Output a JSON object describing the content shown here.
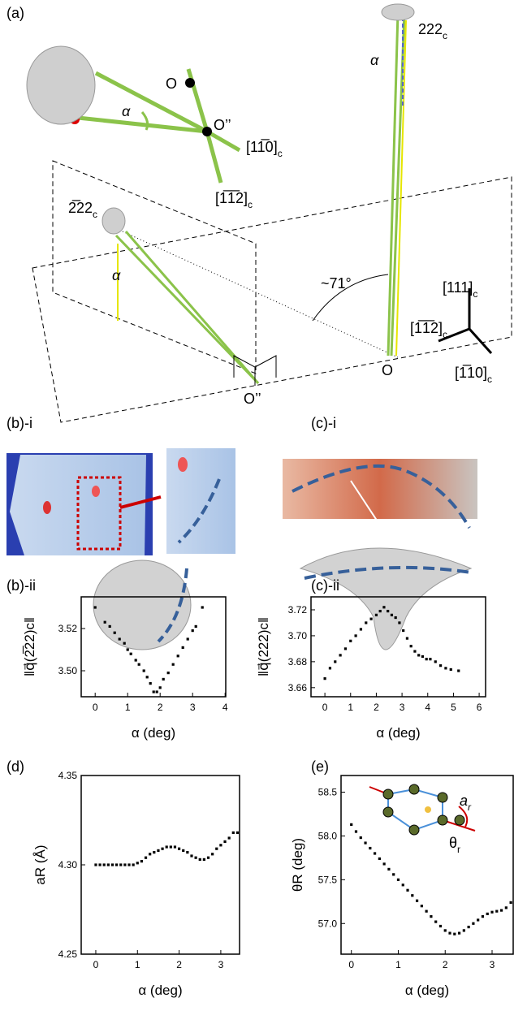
{
  "diagram": {
    "panel_a": "(a)",
    "panel_b_i": "(b)-i",
    "panel_c_i": "(c)-i",
    "a_labels": {
      "O_top": "O",
      "O2_top": "O’’",
      "dir_110": "[11̅0]",
      "dir_110_sub": "c",
      "dir_112": "[1̅1̅2]",
      "dir_112_sub": "c",
      "alpha_1": "α",
      "alpha_2": "α",
      "alpha_3": "α",
      "r222": "222",
      "r222_sub": "c",
      "rm222": "2̅22",
      "rm222_sub": "c",
      "angle": "~71°",
      "ax_111": "[111]",
      "ax_111_sub": "c",
      "ax_112": "[1̅1̅2]",
      "ax_112_sub": "c",
      "ax_110": "[1̅10]",
      "ax_110_sub": "c",
      "O_bottom": "O",
      "O2_bottom": "O’’"
    },
    "e_inset": {
      "a_r": "a",
      "a_r_sub": "r",
      "theta_r": "θ",
      "theta_r_sub": "r"
    }
  },
  "chart_data": [
    {
      "type": "scatter",
      "label": "(b)-ii",
      "xlabel": "α (deg)",
      "ylabel": "‖q⃗(2̅22)c‖",
      "color": "#000000",
      "x": [
        0,
        0.3,
        0.45,
        0.6,
        0.75,
        0.9,
        1.0,
        1.1,
        1.25,
        1.35,
        1.5,
        1.6,
        1.7,
        1.8,
        1.9,
        2.0,
        2.1,
        2.25,
        2.4,
        2.55,
        2.7,
        2.85,
        3.0,
        3.1,
        3.3
      ],
      "values": [
        3.53,
        3.523,
        3.521,
        3.518,
        3.515,
        3.513,
        3.51,
        3.508,
        3.505,
        3.503,
        3.5,
        3.497,
        3.494,
        3.49,
        3.49,
        3.492,
        3.496,
        3.499,
        3.503,
        3.507,
        3.511,
        3.515,
        3.519,
        3.521,
        3.53
      ],
      "xlim": [
        -0.43,
        4.02
      ],
      "ylim": [
        3.4877,
        3.535
      ],
      "xticks": [
        0,
        1,
        2,
        3,
        4
      ],
      "yticks": [
        {
          "value": 3.5,
          "label": "3.50"
        },
        3.52
      ]
    },
    {
      "type": "scatter",
      "label": "(c)-ii",
      "xlabel": "α (deg)",
      "ylabel": "‖q⃗(222)c‖",
      "color": "#000000",
      "x": [
        0,
        0.2,
        0.4,
        0.6,
        0.8,
        1.0,
        1.2,
        1.4,
        1.6,
        1.8,
        2.0,
        2.15,
        2.3,
        2.45,
        2.6,
        2.75,
        2.9,
        3.05,
        3.2,
        3.35,
        3.5,
        3.65,
        3.8,
        3.95,
        4.1,
        4.3,
        4.5,
        4.7,
        4.9,
        5.2
      ],
      "values": [
        3.667,
        3.675,
        3.68,
        3.685,
        3.69,
        3.696,
        3.7,
        3.705,
        3.71,
        3.713,
        3.716,
        3.719,
        3.722,
        3.719,
        3.716,
        3.714,
        3.71,
        3.704,
        3.698,
        3.692,
        3.688,
        3.685,
        3.684,
        3.682,
        3.682,
        3.68,
        3.677,
        3.675,
        3.674,
        3.673
      ],
      "xlim": [
        -0.54,
        6.25
      ],
      "ylim": [
        3.653,
        3.73
      ],
      "xticks": [
        0,
        1,
        2,
        3,
        4,
        5,
        6
      ],
      "yticks": [
        3.66,
        3.68,
        {
          "value": 3.7,
          "label": "3.70"
        },
        3.72
      ]
    },
    {
      "type": "scatter",
      "label": "(d)",
      "xlabel": "α (deg)",
      "ylabel": "aR (Å)",
      "color": "#000000",
      "x": [
        0,
        0.1,
        0.2,
        0.3,
        0.4,
        0.5,
        0.6,
        0.7,
        0.8,
        0.9,
        1.0,
        1.1,
        1.2,
        1.3,
        1.4,
        1.5,
        1.6,
        1.7,
        1.8,
        1.9,
        2.0,
        2.1,
        2.2,
        2.3,
        2.4,
        2.5,
        2.6,
        2.7,
        2.8,
        2.9,
        3.0,
        3.1,
        3.2,
        3.3,
        3.4
      ],
      "values": [
        4.3,
        4.3,
        4.3,
        4.3,
        4.3,
        4.3,
        4.3,
        4.3,
        4.3,
        4.3,
        4.301,
        4.302,
        4.304,
        4.306,
        4.307,
        4.308,
        4.309,
        4.31,
        4.31,
        4.31,
        4.309,
        4.308,
        4.307,
        4.305,
        4.304,
        4.303,
        4.303,
        4.304,
        4.306,
        4.309,
        4.311,
        4.313,
        4.315,
        4.318,
        4.318
      ],
      "xlim": [
        -0.35,
        3.45
      ],
      "ylim": [
        4.25,
        4.35
      ],
      "xticks": [
        0,
        1,
        2,
        3
      ],
      "yticks": [
        4.25,
        {
          "value": 4.3,
          "label": "4.30"
        },
        4.35
      ]
    },
    {
      "type": "scatter",
      "label": "(e)",
      "xlabel": "α (deg)",
      "ylabel": "θR (deg)",
      "color": "#000000",
      "x": [
        0,
        0.1,
        0.2,
        0.3,
        0.4,
        0.5,
        0.6,
        0.7,
        0.8,
        0.9,
        1.0,
        1.1,
        1.2,
        1.3,
        1.4,
        1.5,
        1.6,
        1.7,
        1.8,
        1.9,
        2.0,
        2.1,
        2.2,
        2.3,
        2.4,
        2.5,
        2.6,
        2.7,
        2.8,
        2.9,
        3.0,
        3.1,
        3.2,
        3.3,
        3.4
      ],
      "values": [
        58.13,
        58.05,
        57.98,
        57.92,
        57.86,
        57.8,
        57.74,
        57.68,
        57.62,
        57.56,
        57.5,
        57.44,
        57.38,
        57.32,
        57.26,
        57.2,
        57.14,
        57.08,
        57.02,
        56.97,
        56.92,
        56.89,
        56.88,
        56.89,
        56.92,
        56.96,
        57.0,
        57.04,
        57.08,
        57.11,
        57.13,
        57.14,
        57.15,
        57.18,
        57.24
      ],
      "xlim": [
        -0.22,
        3.45
      ],
      "ylim": [
        56.65,
        58.69
      ],
      "xticks": [
        0,
        1,
        2,
        3
      ],
      "yticks": [
        {
          "value": 57,
          "label": "57.0"
        },
        57.5,
        {
          "value": 58,
          "label": "58.0"
        },
        58.5
      ]
    }
  ]
}
